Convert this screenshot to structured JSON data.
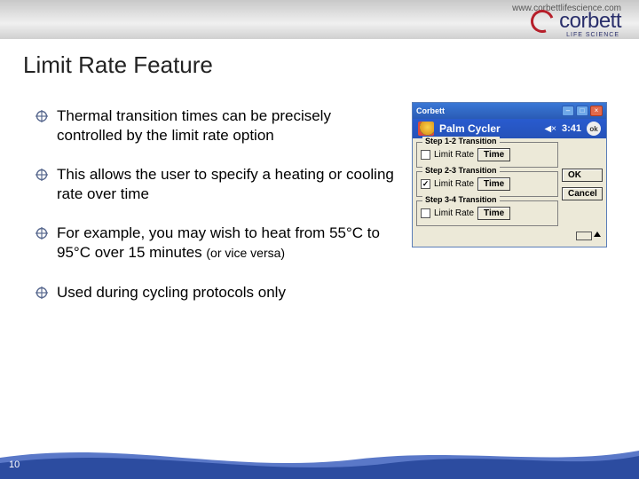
{
  "header": {
    "url": "www.corbettlifescience.com",
    "brand": "corbett",
    "brand_sub": "LIFE SCIENCE",
    "brand_color": "#2a2f6b",
    "ring_color": "#b61f2a"
  },
  "title": "Limit Rate Feature",
  "bullets": [
    {
      "text": "Thermal transition times can be precisely controlled by the limit rate option"
    },
    {
      "text": "This allows the user to specify a heating or cooling rate over time"
    },
    {
      "text": "For example, you may wish to heat from 55°C to 95°C over 15 minutes ",
      "small": "(or vice versa)"
    },
    {
      "text": "Used during cycling protocols only"
    }
  ],
  "screenshot": {
    "window_title": "Corbett",
    "app_title": "Palm Cycler",
    "clock": "3:41",
    "ok_badge": "ok",
    "groups": [
      {
        "legend": "Step 1-2 Transition",
        "checked": false,
        "label": "Limit Rate",
        "button": "Time"
      },
      {
        "legend": "Step 2-3 Transition",
        "checked": true,
        "label": "Limit Rate",
        "button": "Time"
      },
      {
        "legend": "Step 3-4 Transition",
        "checked": false,
        "label": "Limit Rate",
        "button": "Time"
      }
    ],
    "buttons": {
      "ok": "OK",
      "cancel": "Cancel"
    }
  },
  "footer": {
    "page_number": "10",
    "wave_fill": "#2c4ca0",
    "wave_blend": "#5a78c8"
  },
  "bullet_icon_stroke": "#5a6a90"
}
